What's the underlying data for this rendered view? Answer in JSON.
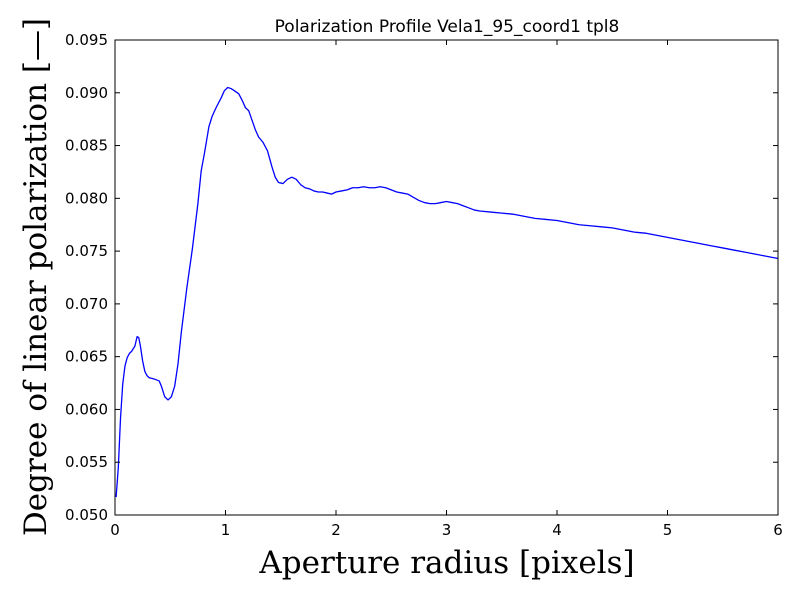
{
  "chart_data": {
    "type": "line",
    "title": "Polarization Profile Vela1_95_coord1 tpl8",
    "xlabel": "Aperture radius [pixels]",
    "ylabel": "Degree of linear polarization [—]",
    "xlim": [
      0,
      6
    ],
    "ylim": [
      0.05,
      0.095
    ],
    "xticks": [
      0,
      1,
      2,
      3,
      4,
      5,
      6
    ],
    "xtick_labels": [
      "0",
      "1",
      "2",
      "3",
      "4",
      "5",
      "6"
    ],
    "yticks": [
      0.05,
      0.055,
      0.06,
      0.065,
      0.07,
      0.075,
      0.08,
      0.085,
      0.09,
      0.095
    ],
    "ytick_labels": [
      "0.050",
      "0.055",
      "0.060",
      "0.065",
      "0.070",
      "0.075",
      "0.080",
      "0.085",
      "0.090",
      "0.095"
    ],
    "grid": false,
    "series": [
      {
        "color": "#0000ff",
        "x": [
          0.01,
          0.03,
          0.05,
          0.07,
          0.09,
          0.11,
          0.13,
          0.15,
          0.18,
          0.2,
          0.215,
          0.23,
          0.25,
          0.27,
          0.29,
          0.31,
          0.35,
          0.4,
          0.42,
          0.45,
          0.48,
          0.51,
          0.54,
          0.57,
          0.6,
          0.65,
          0.7,
          0.75,
          0.78,
          0.81,
          0.85,
          0.88,
          0.92,
          0.96,
          0.99,
          1.02,
          1.05,
          1.08,
          1.12,
          1.15,
          1.18,
          1.21,
          1.24,
          1.27,
          1.3,
          1.34,
          1.38,
          1.42,
          1.45,
          1.48,
          1.52,
          1.56,
          1.6,
          1.64,
          1.68,
          1.72,
          1.76,
          1.8,
          1.84,
          1.88,
          1.92,
          1.96,
          2.0,
          2.05,
          2.1,
          2.15,
          2.2,
          2.25,
          2.3,
          2.35,
          2.4,
          2.45,
          2.5,
          2.55,
          2.6,
          2.65,
          2.7,
          2.75,
          2.8,
          2.85,
          2.9,
          2.95,
          3.0,
          3.05,
          3.1,
          3.15,
          3.2,
          3.25,
          3.3,
          3.4,
          3.5,
          3.6,
          3.7,
          3.8,
          3.9,
          4.0,
          4.1,
          4.2,
          4.3,
          4.4,
          4.5,
          4.6,
          4.7,
          4.8,
          4.9,
          5.0,
          5.1,
          5.2,
          5.3,
          5.4,
          5.5,
          5.6,
          5.7,
          5.8,
          5.9,
          6.0
        ],
        "y": [
          0.0517,
          0.0545,
          0.0592,
          0.0624,
          0.0641,
          0.0649,
          0.0653,
          0.0655,
          0.066,
          0.0669,
          0.0668,
          0.066,
          0.0646,
          0.0636,
          0.0632,
          0.063,
          0.0629,
          0.0627,
          0.0622,
          0.0612,
          0.0609,
          0.0612,
          0.0622,
          0.0643,
          0.0673,
          0.0715,
          0.0752,
          0.0795,
          0.0826,
          0.0843,
          0.0868,
          0.0878,
          0.0887,
          0.0895,
          0.0902,
          0.0905,
          0.0904,
          0.0902,
          0.0899,
          0.0893,
          0.0886,
          0.0883,
          0.0874,
          0.0865,
          0.0858,
          0.0853,
          0.0845,
          0.083,
          0.082,
          0.0815,
          0.0814,
          0.0818,
          0.082,
          0.0818,
          0.0813,
          0.081,
          0.0809,
          0.0807,
          0.0806,
          0.0806,
          0.0805,
          0.0804,
          0.0806,
          0.0807,
          0.0808,
          0.081,
          0.081,
          0.0811,
          0.081,
          0.081,
          0.0811,
          0.081,
          0.0808,
          0.0806,
          0.0805,
          0.0804,
          0.0801,
          0.0798,
          0.0796,
          0.0795,
          0.0795,
          0.0796,
          0.0797,
          0.0796,
          0.0795,
          0.0793,
          0.0791,
          0.0789,
          0.0788,
          0.0787,
          0.0786,
          0.0785,
          0.0783,
          0.0781,
          0.078,
          0.0779,
          0.0777,
          0.0775,
          0.0774,
          0.0773,
          0.0772,
          0.077,
          0.0768,
          0.0767,
          0.0765,
          0.0763,
          0.0761,
          0.0759,
          0.0757,
          0.0755,
          0.0753,
          0.0751,
          0.0749,
          0.0747,
          0.0745,
          0.0743
        ]
      }
    ]
  }
}
